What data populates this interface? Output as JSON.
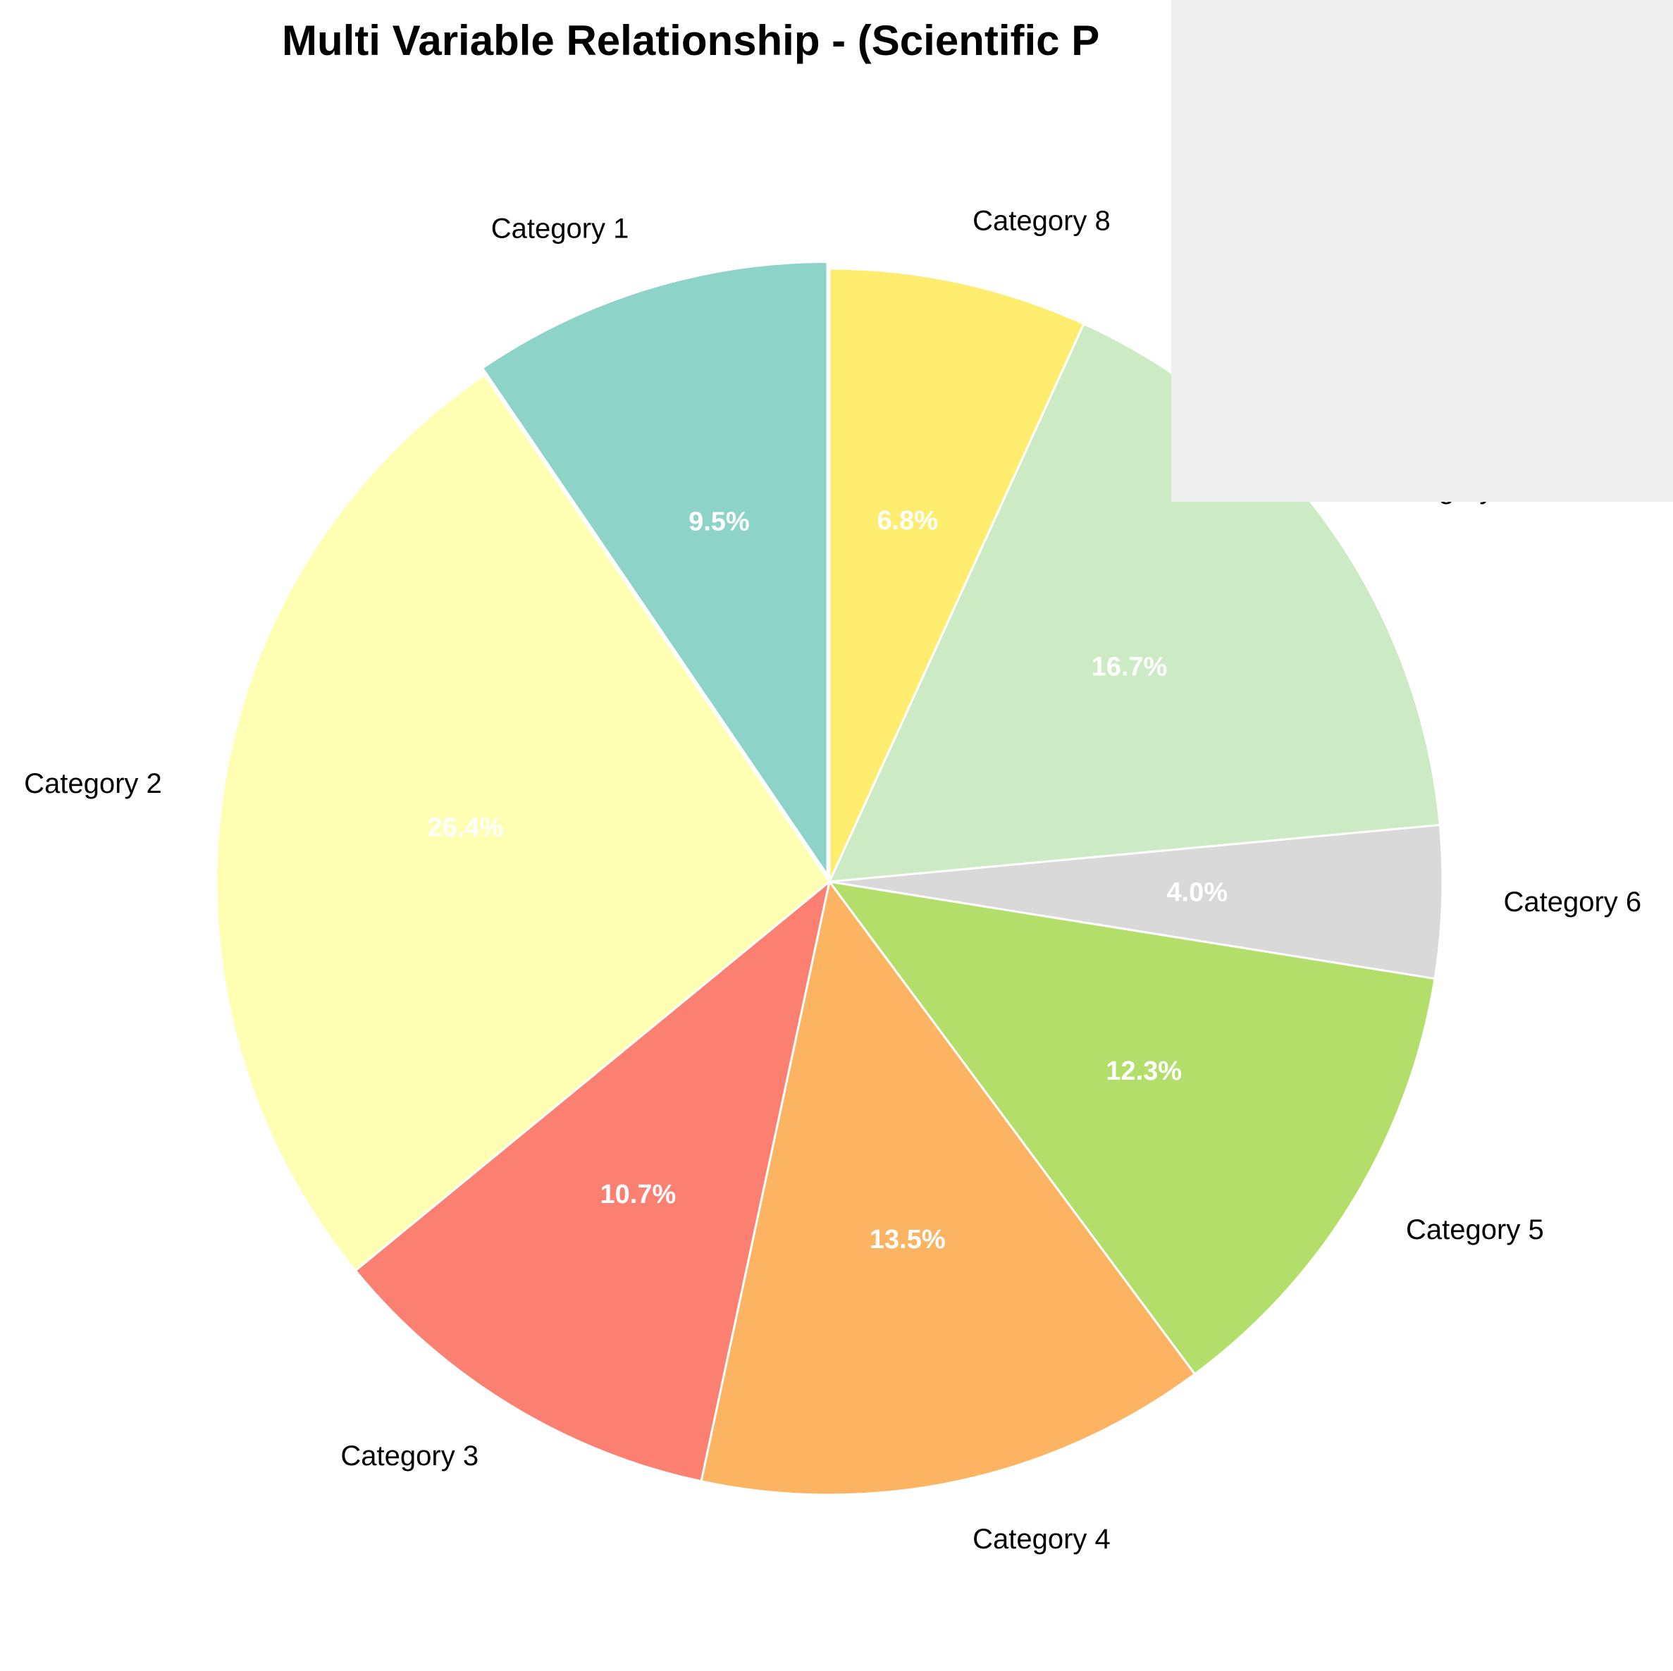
{
  "chart_data": {
    "type": "pie",
    "title": "Multi Variable Relationship - (Scientific P",
    "categories": [
      "Category 1",
      "Category 2",
      "Category 3",
      "Category 4",
      "Category 5",
      "Category 6",
      "Category 7",
      "Category 8"
    ],
    "values": [
      9.5,
      26.4,
      10.7,
      13.5,
      12.3,
      4.0,
      16.7,
      6.8
    ],
    "value_labels": [
      "9.5%",
      "26.4%",
      "10.7%",
      "13.5%",
      "12.3%",
      "4.0%",
      "16.7%",
      "6.8%"
    ],
    "colors": [
      "#8dd3c7",
      "#ffffb3",
      "#fb8072",
      "#fdb462",
      "#b3de69",
      "#d9d9d9",
      "#ccebc5",
      "#ffed6f"
    ],
    "exploded": [
      true,
      false,
      false,
      false,
      false,
      false,
      false,
      false
    ],
    "start_angle_deg": 90,
    "direction": "counterclockwise",
    "overlay_color": "#efefef"
  }
}
